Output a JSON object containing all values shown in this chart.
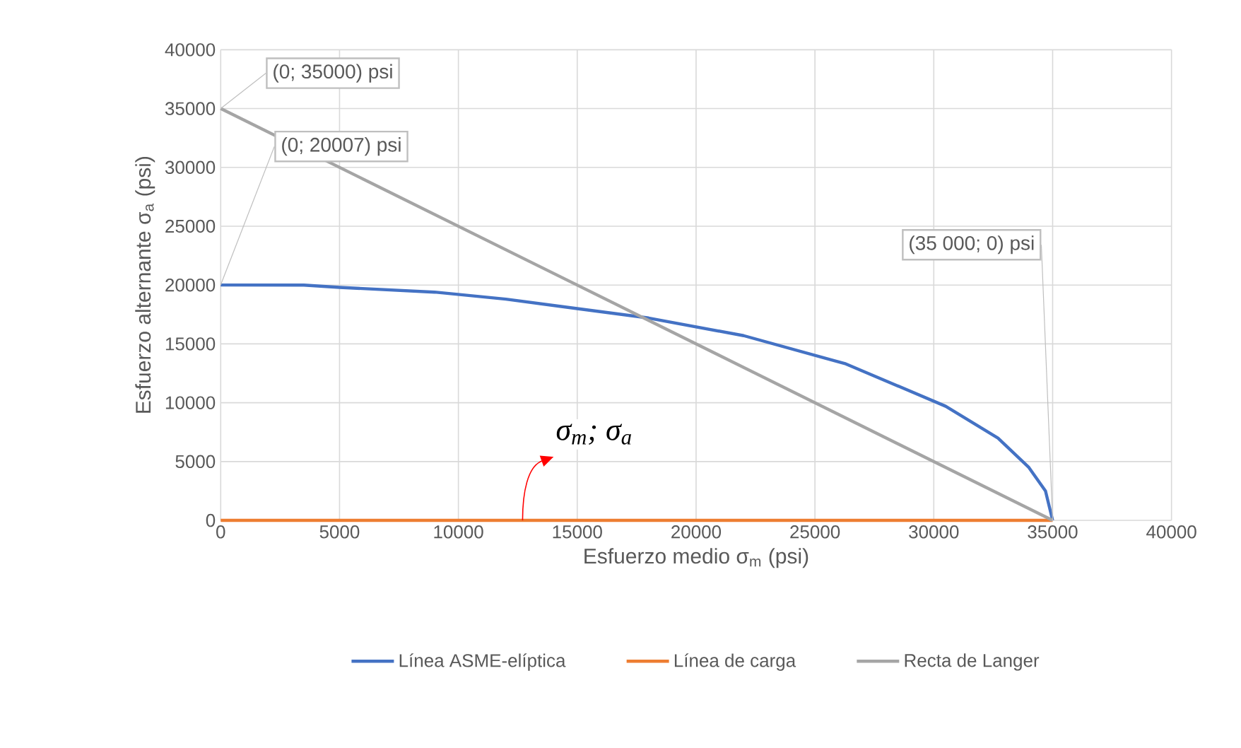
{
  "chart_data": {
    "type": "line",
    "xlabel": "Esfuerzo medio σ$_{m}$ (psi)",
    "ylabel": "Esfuerzo alternante  σ$_{a}$ (psi)",
    "xlim": [
      0,
      40000
    ],
    "ylim": [
      0,
      40000
    ],
    "xticks": [
      0,
      5000,
      10000,
      15000,
      20000,
      25000,
      30000,
      35000,
      40000
    ],
    "yticks": [
      0,
      5000,
      10000,
      15000,
      20000,
      25000,
      30000,
      35000,
      40000
    ],
    "grid": true,
    "legend": "bottom",
    "series": [
      {
        "name": "Línea ASME-elíptica",
        "color": "#4472c4",
        "x": [
          0,
          3500,
          5000,
          9000,
          12000,
          15000,
          18000,
          22000,
          26300,
          30500,
          32700,
          34000,
          34700,
          35000
        ],
        "values": [
          20007,
          20000,
          19800,
          19400,
          18800,
          18000,
          17200,
          15700,
          13300,
          9700,
          7000,
          4500,
          2500,
          0
        ]
      },
      {
        "name": "Línea de carga",
        "color": "#ed7d31",
        "x": [
          0,
          35000
        ],
        "values": [
          0,
          0
        ]
      },
      {
        "name": "Recta de Langer",
        "color": "#a5a5a5",
        "x": [
          0,
          35000
        ],
        "values": [
          35000,
          0
        ]
      }
    ],
    "annotations": [
      {
        "text": "(0; 35000) psi",
        "x": 0,
        "y": 35000
      },
      {
        "text": "(0; 20007) psi",
        "x": 0,
        "y": 20007
      },
      {
        "text": "(35 000; 0) psi",
        "x": 35000,
        "y": 0
      },
      {
        "text": "σ$_{m}$;  σ$_{a}$",
        "x": 12700,
        "y": 0
      }
    ]
  }
}
